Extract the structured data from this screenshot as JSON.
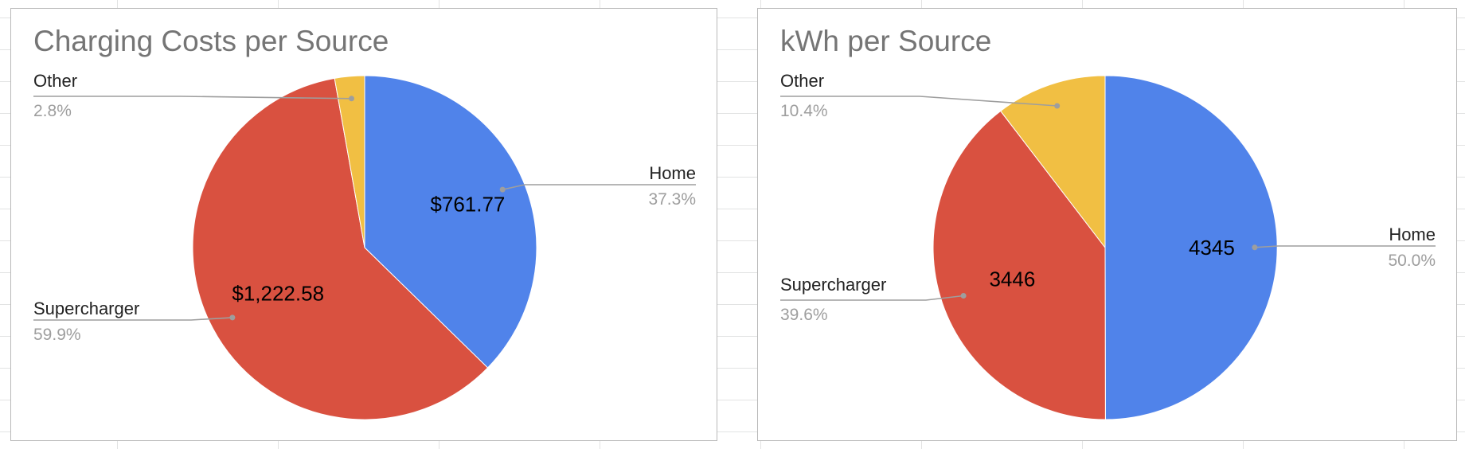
{
  "chart_data": [
    {
      "type": "pie",
      "title": "Charging Costs per Source",
      "slices": [
        {
          "label": "Home",
          "value": 761.77,
          "value_label": "$761.77",
          "percent_label": "37.3%",
          "color": "#5083ea"
        },
        {
          "label": "Supercharger",
          "value": 1222.58,
          "value_label": "$1,222.58",
          "percent_label": "59.9%",
          "color": "#d95140"
        },
        {
          "label": "Other",
          "value": 57.2,
          "value_label": "",
          "percent_label": "2.8%",
          "color": "#f1bf43"
        }
      ],
      "start": "top, clockwise",
      "legend": "labeled"
    },
    {
      "type": "pie",
      "title": "kWh per Source",
      "slices": [
        {
          "label": "Home",
          "value": 4345,
          "value_label": "4345",
          "percent_label": "50.0%",
          "color": "#5083ea"
        },
        {
          "label": "Supercharger",
          "value": 3446,
          "value_label": "3446",
          "percent_label": "39.6%",
          "color": "#d95140"
        },
        {
          "label": "Other",
          "value": 904,
          "value_label": "",
          "percent_label": "10.4%",
          "color": "#f1bf43"
        }
      ],
      "start": "top, clockwise",
      "legend": "labeled"
    }
  ]
}
